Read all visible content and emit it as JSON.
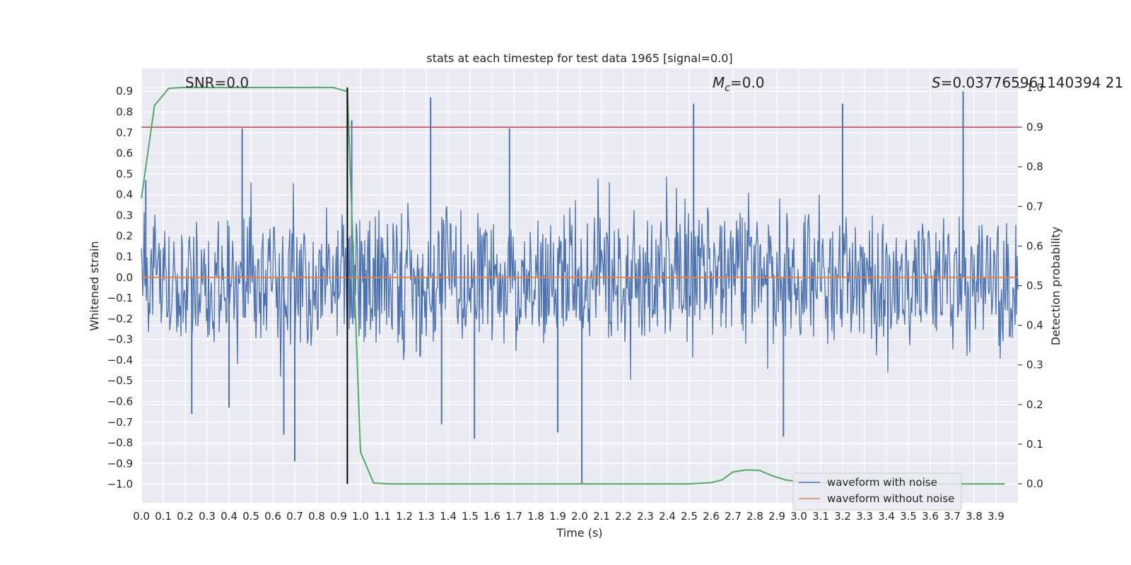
{
  "chart_data": {
    "type": "line",
    "title": "stats at each timestep for test data 1965 [signal=0.0]",
    "xlabel": "Time (s)",
    "ylabel": "Whitened strain",
    "y2label": "Detection probability",
    "xlim": [
      0.0,
      4.0
    ],
    "ylim": [
      -1.09,
      1.01
    ],
    "y2lim": [
      -0.048,
      1.048
    ],
    "xticks": [
      "0.0",
      "0.1",
      "0.2",
      "0.3",
      "0.4",
      "0.5",
      "0.6",
      "0.7",
      "0.8",
      "0.9",
      "1.0",
      "1.1",
      "1.2",
      "1.3",
      "1.4",
      "1.5",
      "1.6",
      "1.7",
      "1.8",
      "1.9",
      "2.0",
      "2.1",
      "2.2",
      "2.3",
      "2.4",
      "2.5",
      "2.6",
      "2.7",
      "2.8",
      "2.9",
      "3.0",
      "3.1",
      "3.2",
      "3.3",
      "3.4",
      "3.5",
      "3.6",
      "3.7",
      "3.8",
      "3.9"
    ],
    "yticks": [
      "0.9",
      "0.8",
      "0.7",
      "0.6",
      "0.5",
      "0.4",
      "0.3",
      "0.2",
      "0.1",
      "0.0",
      "−0.1",
      "−0.2",
      "−0.3",
      "−0.4",
      "−0.5",
      "−0.6",
      "−0.7",
      "−0.8",
      "−0.9",
      "−1.0"
    ],
    "y2ticks": [
      "1.0",
      "0.9",
      "0.8",
      "0.7",
      "0.6",
      "0.5",
      "0.4",
      "0.3",
      "0.2",
      "0.1",
      "0.0"
    ],
    "grid": true,
    "legend_placement": "lower-right",
    "annotations": {
      "snr": "SNR=0.0",
      "mc_symbol": "M",
      "mc_sub": "c",
      "mc_value": "=0.0",
      "s_symbol": "S",
      "s_value": "=0.037765961140394 21"
    },
    "series": [
      {
        "name": "waveform with noise",
        "axis": "left",
        "color": "#4c72b0",
        "amplitude_envelope": {
          "upper": 0.35,
          "lower": -0.35
        },
        "peaks": [
          {
            "x": 0.46,
            "y": 0.72
          },
          {
            "x": 1.32,
            "y": 0.87
          },
          {
            "x": 1.68,
            "y": 0.72
          },
          {
            "x": 2.52,
            "y": 0.84
          },
          {
            "x": 3.2,
            "y": 0.84
          },
          {
            "x": 3.75,
            "y": 0.9
          },
          {
            "x": 0.02,
            "y": 0.47
          },
          {
            "x": 0.96,
            "y": 0.76
          },
          {
            "x": 0.7,
            "y": -0.89
          },
          {
            "x": 0.65,
            "y": -0.76
          },
          {
            "x": 2.01,
            "y": -1.0
          },
          {
            "x": 1.9,
            "y": -0.75
          },
          {
            "x": 1.52,
            "y": -0.78
          },
          {
            "x": 2.93,
            "y": -0.77
          },
          {
            "x": 0.23,
            "y": -0.66
          },
          {
            "x": 1.37,
            "y": -0.71
          },
          {
            "x": 0.4,
            "y": -0.63
          }
        ]
      },
      {
        "name": "waveform without noise",
        "axis": "left",
        "color": "#dd8452",
        "x": [
          0.0,
          4.0
        ],
        "y": [
          0.0,
          0.0
        ]
      },
      {
        "name": "detection probability",
        "axis": "right",
        "color": "#55a868",
        "x": [
          0.0,
          0.06,
          0.125,
          0.19,
          0.25,
          0.5,
          0.75,
          0.875,
          0.94,
          1.0,
          1.06,
          1.125,
          1.25,
          1.5,
          2.0,
          2.5,
          2.6,
          2.65,
          2.7,
          2.76,
          2.82,
          2.88,
          2.94,
          3.0,
          3.25,
          3.5,
          3.75,
          3.94
        ],
        "y": [
          0.72,
          0.955,
          0.998,
          1.0,
          1.0,
          1.0,
          1.0,
          1.0,
          0.99,
          0.08,
          0.002,
          0.0,
          0.0,
          0.0,
          0.0,
          0.0,
          0.003,
          0.01,
          0.03,
          0.035,
          0.034,
          0.02,
          0.01,
          0.005,
          0.0,
          0.0,
          0.0,
          0.0
        ]
      },
      {
        "name": "threshold",
        "axis": "right",
        "color": "#c44e52",
        "x": [
          0.0,
          4.0
        ],
        "y": [
          0.9,
          0.9
        ]
      }
    ],
    "vertical_marker": {
      "x": 0.94,
      "color": "#000000"
    },
    "legend": [
      "waveform with noise",
      "waveform without noise"
    ]
  }
}
